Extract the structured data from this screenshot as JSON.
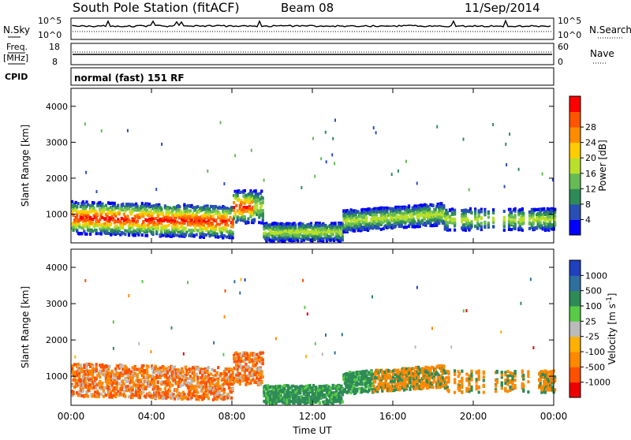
{
  "header": {
    "station": "South Pole Station (fitACF)",
    "beam": "Beam 08",
    "date": "11/Sep/2014"
  },
  "noise_panel": {
    "left_label": "N.Sky",
    "right_label": "N.Search",
    "left_ticks": [
      "10^5",
      "10^0"
    ],
    "right_ticks": [
      "10^5",
      "10^0"
    ]
  },
  "freq_panel": {
    "left_label_1": "Freq.",
    "left_label_2": "[MHz]",
    "left_ticks": [
      "18",
      "8"
    ],
    "right_label": "Nave",
    "right_ticks": [
      "60",
      "0"
    ]
  },
  "cpid_panel": {
    "label": "CPID",
    "text": "normal (fast) 151 RF"
  },
  "chart_data": [
    {
      "type": "heatmap",
      "name": "power",
      "ylabel": "Slant Range [km]",
      "yticks": [
        "1000",
        "2000",
        "3000",
        "4000"
      ],
      "ylim": [
        200,
        4500
      ],
      "xlim": [
        0,
        24
      ],
      "colorbar": {
        "label": "Power [dB]",
        "ticks": [
          "4",
          "8",
          "12",
          "16",
          "20",
          "24",
          "28"
        ],
        "colors": [
          "#0000ff",
          "#2850b4",
          "#2e8b57",
          "#66bb55",
          "#b8e02a",
          "#ffcc00",
          "#ff8c00",
          "#ff5500",
          "#ff0000"
        ]
      }
    },
    {
      "type": "heatmap",
      "name": "velocity",
      "ylabel": "Slant Range [km]",
      "yticks": [
        "1000",
        "2000",
        "3000",
        "4000"
      ],
      "ylim": [
        200,
        4500
      ],
      "xlim": [
        0,
        24
      ],
      "colorbar": {
        "label": "Velocity [m s^-1]",
        "ticks": [
          "1000",
          "500",
          "100",
          "25",
          "-25",
          "-100",
          "-500",
          "-1000"
        ],
        "colors": [
          "#2040c0",
          "#2e6fa0",
          "#2e8b57",
          "#55cc44",
          "#bbbbbb",
          "#ffb000",
          "#ff8800",
          "#ff5000",
          "#ee0000"
        ]
      }
    }
  ],
  "xaxis": {
    "ticks": [
      "00:00",
      "04:00",
      "08:00",
      "12:00",
      "16:00",
      "20:00",
      "00:00"
    ],
    "label": "Time UT"
  }
}
